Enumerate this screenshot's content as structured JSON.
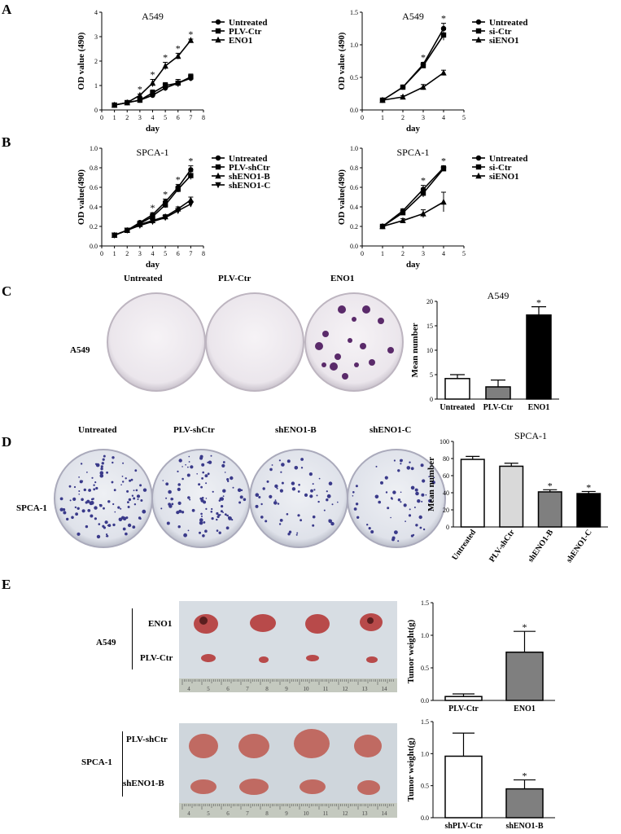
{
  "panels": [
    "A",
    "B",
    "C",
    "D",
    "E"
  ],
  "chart_data": [
    {
      "id": "A-left",
      "type": "line",
      "title": "A549",
      "xlabel": "day",
      "ylabel": "OD value (490)",
      "xlim": [
        0,
        8
      ],
      "ylim": [
        0,
        4
      ],
      "xticks": [
        "0",
        "1",
        "2",
        "3",
        "4",
        "5",
        "6",
        "7",
        "8"
      ],
      "yticks": [
        "0",
        "1",
        "2",
        "3",
        "4"
      ],
      "x": [
        1,
        2,
        3,
        4,
        5,
        6,
        7
      ],
      "series": [
        {
          "name": "Untreated",
          "marker": "circle",
          "values": [
            0.2,
            0.3,
            0.4,
            0.6,
            0.9,
            1.1,
            1.3
          ],
          "err": [
            0.03,
            0.04,
            0.06,
            0.1,
            0.12,
            0.15,
            0.12
          ]
        },
        {
          "name": "PLV-Ctr",
          "marker": "square",
          "values": [
            0.2,
            0.3,
            0.4,
            0.7,
            1.0,
            1.1,
            1.35
          ],
          "err": [
            0.03,
            0.04,
            0.06,
            0.12,
            0.12,
            0.15,
            0.12
          ]
        },
        {
          "name": "ENO1",
          "marker": "triangle",
          "values": [
            0.2,
            0.3,
            0.6,
            1.1,
            1.8,
            2.2,
            2.85
          ],
          "err": [
            0.03,
            0.04,
            0.05,
            0.15,
            0.15,
            0.12,
            0.05
          ]
        }
      ],
      "stars_at": [
        3,
        4,
        5,
        6,
        7
      ]
    },
    {
      "id": "A-right",
      "type": "line",
      "title": "A549",
      "xlabel": "day",
      "ylabel": "OD value (490)",
      "xlim": [
        0,
        5
      ],
      "ylim": [
        0,
        1.5
      ],
      "xticks": [
        "0",
        "1",
        "2",
        "3",
        "4",
        "5"
      ],
      "yticks": [
        "0.0",
        "0.5",
        "1.0",
        "1.5"
      ],
      "x": [
        1,
        2,
        3,
        4
      ],
      "series": [
        {
          "name": "Untreated",
          "marker": "circle",
          "values": [
            0.15,
            0.35,
            0.7,
            1.25
          ],
          "err": [
            0.01,
            0.02,
            0.03,
            0.08
          ]
        },
        {
          "name": "si-Ctr",
          "marker": "square",
          "values": [
            0.15,
            0.35,
            0.68,
            1.15
          ],
          "err": [
            0.01,
            0.02,
            0.03,
            0.08
          ]
        },
        {
          "name": "siENO1",
          "marker": "triangle",
          "values": [
            0.15,
            0.2,
            0.35,
            0.57
          ],
          "err": [
            0.01,
            0.02,
            0.04,
            0.04
          ]
        }
      ],
      "stars_at": [
        3,
        4
      ]
    },
    {
      "id": "B-left",
      "type": "line",
      "title": "SPCA-1",
      "xlabel": "day",
      "ylabel": "OD value(490)",
      "xlim": [
        0,
        8
      ],
      "ylim": [
        0,
        1.0
      ],
      "xticks": [
        "0",
        "1",
        "2",
        "3",
        "4",
        "5",
        "6",
        "7",
        "8"
      ],
      "yticks": [
        "0.0",
        "0.2",
        "0.4",
        "0.6",
        "0.8",
        "1.0"
      ],
      "x": [
        1,
        2,
        3,
        4,
        5,
        6,
        7
      ],
      "series": [
        {
          "name": "Untreated",
          "marker": "circle",
          "values": [
            0.11,
            0.16,
            0.24,
            0.32,
            0.45,
            0.6,
            0.78
          ],
          "err": [
            0.01,
            0.01,
            0.015,
            0.02,
            0.03,
            0.03,
            0.04
          ]
        },
        {
          "name": "PLV-shCtr",
          "marker": "square",
          "values": [
            0.11,
            0.16,
            0.23,
            0.3,
            0.42,
            0.58,
            0.72
          ],
          "err": [
            0.01,
            0.01,
            0.015,
            0.02,
            0.03,
            0.03,
            0.04
          ]
        },
        {
          "name": "shENO1-B",
          "marker": "triangle",
          "values": [
            0.11,
            0.16,
            0.22,
            0.26,
            0.3,
            0.38,
            0.47
          ],
          "err": [
            0.01,
            0.01,
            0.015,
            0.02,
            0.02,
            0.02,
            0.03
          ]
        },
        {
          "name": "shENO1-C",
          "marker": "triangle-down",
          "values": [
            0.11,
            0.16,
            0.21,
            0.25,
            0.29,
            0.36,
            0.43
          ],
          "err": [
            0.01,
            0.01,
            0.015,
            0.02,
            0.02,
            0.02,
            0.03
          ]
        }
      ],
      "stars_at": [
        4,
        5,
        6,
        7
      ]
    },
    {
      "id": "B-right",
      "type": "line",
      "title": "SPCA-1",
      "xlabel": "day",
      "ylabel": "OD value(490)",
      "xlim": [
        0,
        5
      ],
      "ylim": [
        0,
        1.0
      ],
      "xticks": [
        "0",
        "1",
        "2",
        "3",
        "4",
        "5"
      ],
      "yticks": [
        "0.0",
        "0.2",
        "0.4",
        "0.6",
        "0.8",
        "1.0"
      ],
      "x": [
        1,
        2,
        3,
        4
      ],
      "series": [
        {
          "name": "Untreated",
          "marker": "circle",
          "values": [
            0.2,
            0.36,
            0.58,
            0.8
          ],
          "err": [
            0.01,
            0.02,
            0.04,
            0.02
          ]
        },
        {
          "name": "si-Ctr",
          "marker": "square",
          "values": [
            0.2,
            0.34,
            0.54,
            0.79
          ],
          "err": [
            0.01,
            0.02,
            0.04,
            0.02
          ]
        },
        {
          "name": "siENO1",
          "marker": "triangle",
          "values": [
            0.2,
            0.26,
            0.33,
            0.45
          ],
          "err": [
            0.01,
            0.02,
            0.04,
            0.1
          ]
        }
      ],
      "stars_at": [
        3,
        4
      ]
    },
    {
      "id": "C-bar",
      "type": "bar",
      "title": "A549",
      "ylabel": "Mean number",
      "ylim": [
        0,
        20
      ],
      "yticks": [
        "0",
        "5",
        "10",
        "15",
        "20"
      ],
      "categories": [
        "Untreated",
        "PLV-Ctr",
        "ENO1"
      ],
      "values": [
        4.2,
        2.5,
        17.2
      ],
      "err": [
        0.8,
        1.4,
        1.7
      ],
      "colors": [
        "#ffffff",
        "#7f7f7f",
        "#000000"
      ],
      "stars": [
        "",
        "",
        "*"
      ]
    },
    {
      "id": "D-bar",
      "type": "bar",
      "title": "SPCA-1",
      "ylabel": "Mean number",
      "ylim": [
        0,
        100
      ],
      "yticks": [
        "0",
        "20",
        "40",
        "60",
        "80",
        "100"
      ],
      "categories": [
        "Untreated",
        "PLV-shCtr",
        "shENO1-B",
        "shENO1-C"
      ],
      "values": [
        79,
        71,
        41,
        39
      ],
      "err": [
        3.5,
        3.5,
        2.5,
        2.5
      ],
      "colors": [
        "#ffffff",
        "#d9d9d9",
        "#7f7f7f",
        "#000000"
      ],
      "stars": [
        "",
        "",
        "*",
        "*"
      ]
    },
    {
      "id": "E-top-bar",
      "type": "bar",
      "ylabel": "Tumor weight(g)",
      "ylim": [
        0,
        1.5
      ],
      "yticks": [
        "0.0",
        "0.5",
        "1.0",
        "1.5"
      ],
      "categories": [
        "PLV-Ctr",
        "ENO1"
      ],
      "values": [
        0.06,
        0.74
      ],
      "err": [
        0.04,
        0.32
      ],
      "colors": [
        "#ffffff",
        "#7f7f7f"
      ],
      "stars": [
        "",
        "*"
      ]
    },
    {
      "id": "E-bottom-bar",
      "type": "bar",
      "ylabel": "Tumor weight(g)",
      "ylim": [
        0,
        1.5
      ],
      "yticks": [
        "0.0",
        "0.5",
        "1.0",
        "1.5"
      ],
      "categories": [
        "shPLV-Ctr",
        "shENO1-B"
      ],
      "values": [
        0.96,
        0.45
      ],
      "err": [
        0.36,
        0.14
      ],
      "colors": [
        "#ffffff",
        "#7f7f7f"
      ],
      "stars": [
        "",
        "*"
      ]
    }
  ],
  "colony_C": {
    "row_label": "A549",
    "dish_labels": [
      "Untreated",
      "PLV-Ctr",
      "ENO1"
    ]
  },
  "colony_D": {
    "row_label": "SPCA-1",
    "dish_labels": [
      "Untreated",
      "PLV-shCtr",
      "shENO1-B",
      "shENO1-C"
    ]
  },
  "tumor_top": {
    "group": "A549",
    "rows": [
      "ENO1",
      "PLV-Ctr"
    ]
  },
  "tumor_bottom": {
    "group": "SPCA-1",
    "rows": [
      "PLV-shCtr",
      "shENO1-B"
    ]
  },
  "ruler_ticks": [
    "4",
    "5",
    "6",
    "7",
    "8",
    "9",
    "10",
    "11",
    "12",
    "13",
    "14"
  ],
  "star_symbol": "*"
}
